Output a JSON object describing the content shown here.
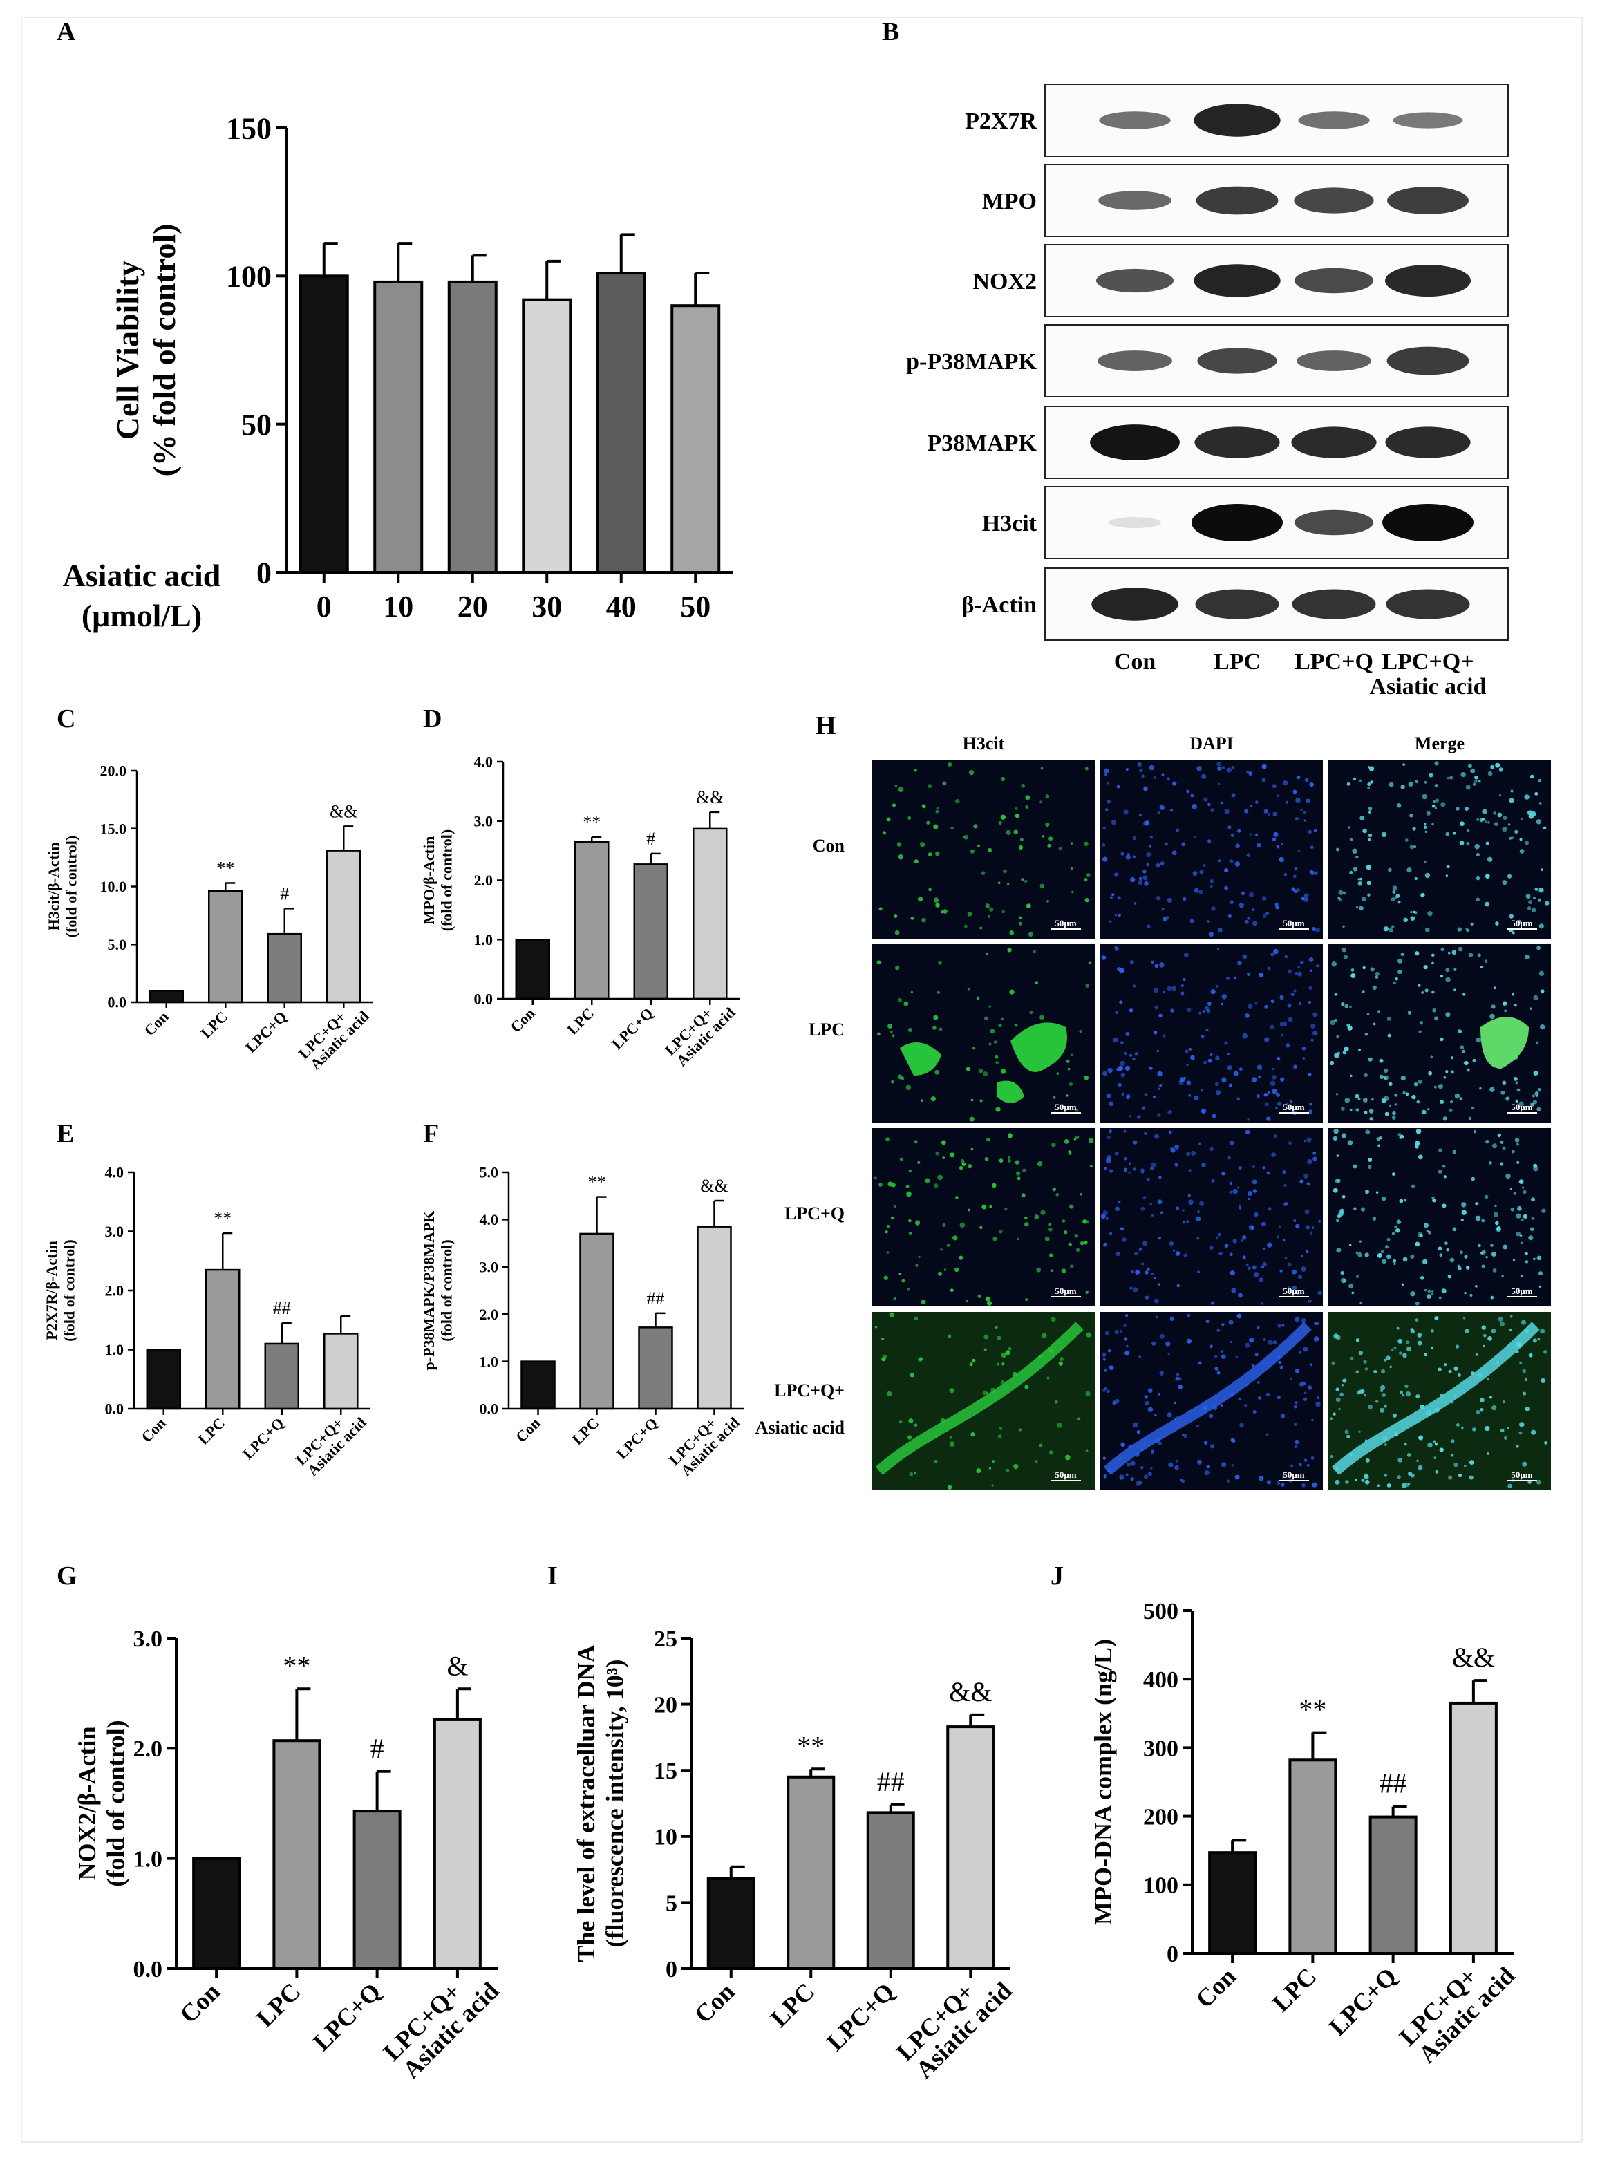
{
  "panel_letters": {
    "A": "A",
    "B": "B",
    "C": "C",
    "D": "D",
    "E": "E",
    "F": "F",
    "G": "G",
    "H": "H",
    "I": "I",
    "J": "J"
  },
  "colors": {
    "con": "#111111",
    "lpc": "#9a9a9a",
    "lpcq": "#7c7c7c",
    "lpcqaa": "#cfcfcf",
    "v0": "#111111",
    "v10": "#8c8c8c",
    "v20": "#7a7a7a",
    "v30": "#d6d6d6",
    "v40": "#5c5c5c",
    "v50": "#a6a6a6",
    "fluor_green": "#27c33a",
    "fluor_blue": "#2a5ee8",
    "fluor_cyan": "#55d7e2",
    "fluor_bg": "#03081a"
  },
  "chart_data": [
    {
      "id": "A",
      "type": "bar",
      "title": "",
      "ylabel": "Cell Viability\n(% fold of control)",
      "xlabel": "Asiatic acid\n(μmol/L)",
      "categories": [
        "0",
        "10",
        "20",
        "30",
        "40",
        "50"
      ],
      "values": [
        100,
        98,
        98,
        92,
        101,
        90
      ],
      "errors": [
        11,
        13,
        9,
        13,
        13,
        11
      ],
      "ylim": [
        0,
        150
      ],
      "yticks": [
        "0",
        "50",
        "100",
        "150"
      ],
      "annotations": [
        "",
        "",
        "",
        "",
        "",
        ""
      ]
    },
    {
      "id": "C",
      "type": "bar",
      "title": "",
      "ylabel": "H3cit/β-Actin\n(fold of control)",
      "categories": [
        "Con",
        "LPC",
        "LPC+Q",
        "LPC+Q+\nAsiatic acid"
      ],
      "values": [
        1.0,
        9.6,
        5.9,
        13.1
      ],
      "errors": [
        0,
        0.7,
        2.2,
        2.1
      ],
      "ylim": [
        0,
        20
      ],
      "yticks": [
        "0.0",
        "5.0",
        "10.0",
        "15.0",
        "20.0"
      ],
      "annotations": [
        "",
        "**",
        "#",
        "&&"
      ]
    },
    {
      "id": "D",
      "type": "bar",
      "title": "",
      "ylabel": "MPO/β-Actin\n(fold of control)",
      "categories": [
        "Con",
        "LPC",
        "LPC+Q",
        "LPC+Q+\nAsiatic acid"
      ],
      "values": [
        1.0,
        2.65,
        2.27,
        2.87
      ],
      "errors": [
        0,
        0.08,
        0.18,
        0.28
      ],
      "ylim": [
        0,
        4
      ],
      "yticks": [
        "0.0",
        "1.0",
        "2.0",
        "3.0",
        "4.0"
      ],
      "annotations": [
        "",
        "**",
        "#",
        "&&"
      ]
    },
    {
      "id": "E",
      "type": "bar",
      "title": "",
      "ylabel": "P2X7R/β-Actin\n(fold of control)",
      "categories": [
        "Con",
        "LPC",
        "LPC+Q",
        "LPC+Q+\nAsiatic acid"
      ],
      "values": [
        1.0,
        2.35,
        1.1,
        1.27
      ],
      "errors": [
        0,
        0.62,
        0.35,
        0.3
      ],
      "ylim": [
        0,
        4
      ],
      "yticks": [
        "0.0",
        "1.0",
        "2.0",
        "3.0",
        "4.0"
      ],
      "annotations": [
        "",
        "**",
        "##",
        ""
      ]
    },
    {
      "id": "F",
      "type": "bar",
      "title": "",
      "ylabel": "p-P38MAPK/P38MAPK\n(fold of control)",
      "categories": [
        "Con",
        "LPC",
        "LPC+Q",
        "LPC+Q+\nAsiatic acid"
      ],
      "values": [
        1.0,
        3.7,
        1.72,
        3.85
      ],
      "errors": [
        0,
        0.78,
        0.3,
        0.55
      ],
      "ylim": [
        0,
        5
      ],
      "yticks": [
        "0.0",
        "1.0",
        "2.0",
        "3.0",
        "4.0",
        "5.0"
      ],
      "annotations": [
        "",
        "**",
        "##",
        "&&"
      ]
    },
    {
      "id": "G",
      "type": "bar",
      "title": "",
      "ylabel": "NOX2/β-Actin\n(fold of control)",
      "categories": [
        "Con",
        "LPC",
        "LPC+Q",
        "LPC+Q+\nAsiatic acid"
      ],
      "values": [
        1.0,
        2.07,
        1.43,
        2.26
      ],
      "errors": [
        0,
        0.47,
        0.36,
        0.28
      ],
      "ylim": [
        0,
        3
      ],
      "yticks": [
        "0.0",
        "1.0",
        "2.0",
        "3.0"
      ],
      "annotations": [
        "",
        "**",
        "#",
        "&"
      ]
    },
    {
      "id": "I",
      "type": "bar",
      "title": "",
      "ylabel": "The level of extracelluar DNA\n(fluorescence intensity, 10³)",
      "categories": [
        "Con",
        "LPC",
        "LPC+Q",
        "LPC+Q+\nAsiatic acid"
      ],
      "values": [
        6.8,
        14.5,
        11.8,
        18.3
      ],
      "errors": [
        0.9,
        0.6,
        0.6,
        0.9
      ],
      "ylim": [
        0,
        25
      ],
      "yticks": [
        "0",
        "5",
        "10",
        "15",
        "20",
        "25"
      ],
      "annotations": [
        "",
        "**",
        "##",
        "&&"
      ]
    },
    {
      "id": "J",
      "type": "bar",
      "title": "",
      "ylabel": "MPO-DNA complex (ng/L)",
      "categories": [
        "Con",
        "LPC",
        "LPC+Q",
        "LPC+Q+\nAsiatic acid"
      ],
      "values": [
        147,
        282,
        199,
        365
      ],
      "errors": [
        18,
        40,
        15,
        33
      ],
      "ylim": [
        0,
        500
      ],
      "yticks": [
        "0",
        "100",
        "200",
        "300",
        "400",
        "500"
      ],
      "annotations": [
        "",
        "**",
        "##",
        "&&"
      ]
    }
  ],
  "western_blot": {
    "bands": [
      "P2X7R",
      "MPO",
      "NOX2",
      "p-P38MAPK",
      "P38MAPK",
      "H3cit",
      "β-Actin"
    ],
    "lanes": [
      "Con",
      "LPC",
      "LPC+Q",
      "LPC+Q+\nAsiatic acid"
    ],
    "intensities": [
      [
        0.35,
        0.85,
        0.35,
        0.3
      ],
      [
        0.4,
        0.7,
        0.62,
        0.68
      ],
      [
        0.55,
        0.85,
        0.6,
        0.82
      ],
      [
        0.45,
        0.62,
        0.45,
        0.7
      ],
      [
        0.95,
        0.8,
        0.8,
        0.8
      ],
      [
        0.05,
        1.0,
        0.6,
        1.0
      ],
      [
        0.85,
        0.75,
        0.75,
        0.75
      ]
    ]
  },
  "fluorescence": {
    "columns": [
      "H3cit",
      "DAPI",
      "Merge"
    ],
    "rows": [
      "Con",
      "LPC",
      "LPC+Q",
      "LPC+Q+\nAsiatic acid"
    ],
    "scale_bar": "50μm"
  }
}
